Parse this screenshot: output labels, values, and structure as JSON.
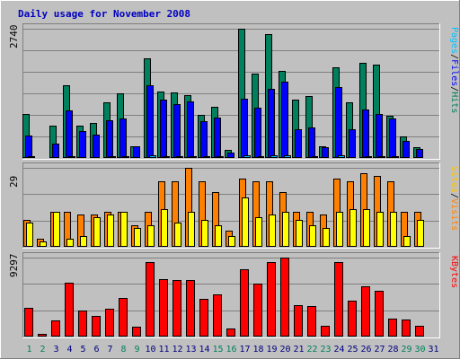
{
  "chart_data": [
    {
      "type": "bar",
      "title": "Daily usage for November 2008",
      "panel": "top",
      "y_max_label": "2740",
      "ylim": [
        0,
        2740
      ],
      "right_labels": [
        "Pages",
        "Files",
        "Hits"
      ],
      "categories": [
        "1",
        "2",
        "3",
        "4",
        "5",
        "6",
        "7",
        "8",
        "9",
        "10",
        "11",
        "12",
        "13",
        "14",
        "15",
        "16",
        "17",
        "18",
        "19",
        "20",
        "21",
        "22",
        "23",
        "24",
        "25",
        "26",
        "27",
        "28",
        "29",
        "30",
        "31"
      ],
      "series": [
        {
          "name": "Hits",
          "color": "#00805c",
          "values": [
            940,
            25,
            680,
            1540,
            680,
            740,
            1180,
            1370,
            250,
            2110,
            1400,
            1380,
            1340,
            920,
            1080,
            180,
            2740,
            1780,
            2630,
            1840,
            1240,
            1320,
            250,
            1920,
            1180,
            2010,
            1980,
            900,
            450,
            230,
            0
          ]
        },
        {
          "name": "Files",
          "color": "#0000ff",
          "values": [
            480,
            0,
            300,
            1010,
            580,
            490,
            790,
            830,
            240,
            1550,
            1240,
            1140,
            1200,
            780,
            850,
            120,
            1250,
            1060,
            1470,
            1610,
            600,
            640,
            220,
            1500,
            600,
            1020,
            940,
            840,
            360,
            190,
            0
          ]
        },
        {
          "name": "Pages",
          "color": "#00c0ff",
          "values": [
            30,
            0,
            20,
            40,
            25,
            20,
            30,
            35,
            15,
            50,
            40,
            35,
            40,
            30,
            30,
            10,
            60,
            40,
            55,
            55,
            25,
            30,
            10,
            50,
            25,
            40,
            35,
            30,
            15,
            10,
            0
          ]
        }
      ],
      "bar_top_overrides": {}
    },
    {
      "type": "bar",
      "panel": "middle",
      "y_max_label": "29",
      "ylim": [
        0,
        29
      ],
      "right_labels": [
        "Sites",
        "Visits"
      ],
      "categories": [
        "1",
        "2",
        "3",
        "4",
        "5",
        "6",
        "7",
        "8",
        "9",
        "10",
        "11",
        "12",
        "13",
        "14",
        "15",
        "16",
        "17",
        "18",
        "19",
        "20",
        "21",
        "22",
        "23",
        "24",
        "25",
        "26",
        "27",
        "28",
        "29",
        "30",
        "31"
      ],
      "series": [
        {
          "name": "Visits",
          "color": "#ff8000",
          "values": [
            10,
            3,
            13,
            13,
            12,
            12,
            13,
            13,
            8,
            13,
            24,
            24,
            29,
            24,
            20,
            6,
            25,
            24,
            24,
            20,
            13,
            13,
            12,
            25,
            24,
            27,
            26,
            24,
            13,
            13,
            0
          ]
        },
        {
          "name": "Sites",
          "color": "#ffff00",
          "values": [
            9,
            2,
            13,
            3,
            4,
            11,
            12,
            13,
            7,
            8,
            14,
            9,
            13,
            10,
            8,
            4,
            18,
            11,
            12,
            13,
            10,
            8,
            7,
            13,
            14,
            14,
            13,
            13,
            4,
            10,
            0
          ]
        }
      ]
    },
    {
      "type": "bar",
      "panel": "bottom",
      "y_max_label": "9297",
      "ylim": [
        0,
        9297
      ],
      "right_labels": [
        "KBytes"
      ],
      "categories": [
        "1",
        "2",
        "3",
        "4",
        "5",
        "6",
        "7",
        "8",
        "9",
        "10",
        "11",
        "12",
        "13",
        "14",
        "15",
        "16",
        "17",
        "18",
        "19",
        "20",
        "21",
        "22",
        "23",
        "24",
        "25",
        "26",
        "27",
        "28",
        "29",
        "30",
        "31"
      ],
      "series": [
        {
          "name": "KBytes",
          "color": "#ff0000",
          "values": [
            3370,
            300,
            1900,
            6300,
            3060,
            2450,
            3250,
            4550,
            1200,
            8790,
            6780,
            6680,
            6680,
            4470,
            5000,
            900,
            7970,
            6270,
            8720,
            9297,
            3700,
            3580,
            1300,
            8790,
            4230,
            5900,
            5440,
            2100,
            2000,
            1300,
            0
          ]
        }
      ]
    }
  ],
  "x_labels": {
    "weekend_days": [
      "1",
      "2",
      "8",
      "9",
      "15",
      "16",
      "22",
      "23",
      "29",
      "30"
    ],
    "weekend_color": "#00805c",
    "weekday_color": "#000080"
  }
}
